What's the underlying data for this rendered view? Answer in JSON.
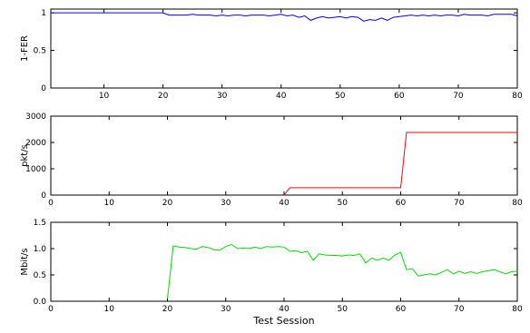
{
  "chart_data": [
    {
      "type": "line",
      "title": "",
      "xlabel": "",
      "ylabel": "1-FER",
      "xlim": [
        1,
        80
      ],
      "ylim": [
        0,
        1.05
      ],
      "xticks": [
        10,
        20,
        30,
        40,
        50,
        60,
        70,
        80
      ],
      "yticks": [
        0,
        0.5,
        1
      ],
      "ytick_labels": [
        "0",
        "0.5",
        "1"
      ],
      "grid": false,
      "series": [
        {
          "color": "#0000ff",
          "x": [
            1,
            2,
            3,
            4,
            5,
            6,
            7,
            8,
            9,
            10,
            11,
            12,
            13,
            14,
            15,
            16,
            17,
            18,
            19,
            20,
            21,
            22,
            23,
            24,
            25,
            26,
            27,
            28,
            29,
            30,
            31,
            32,
            33,
            34,
            35,
            36,
            37,
            38,
            39,
            40,
            41,
            42,
            43,
            44,
            45,
            46,
            47,
            48,
            49,
            50,
            51,
            52,
            53,
            54,
            55,
            56,
            57,
            58,
            59,
            60,
            61,
            62,
            63,
            64,
            65,
            66,
            67,
            68,
            69,
            70,
            71,
            72,
            73,
            74,
            75,
            76,
            77,
            78,
            79,
            80
          ],
          "y": [
            1,
            1,
            1,
            1,
            1,
            1,
            1,
            1,
            1,
            1,
            1,
            1,
            1,
            1,
            1,
            1,
            1,
            1,
            1,
            1,
            0.97,
            0.97,
            0.97,
            0.97,
            0.98,
            0.97,
            0.97,
            0.97,
            0.96,
            0.97,
            0.96,
            0.97,
            0.97,
            0.96,
            0.97,
            0.97,
            0.97,
            0.96,
            0.97,
            0.98,
            0.96,
            0.97,
            0.94,
            0.96,
            0.9,
            0.93,
            0.95,
            0.93,
            0.94,
            0.95,
            0.93,
            0.95,
            0.94,
            0.89,
            0.91,
            0.9,
            0.93,
            0.9,
            0.94,
            0.95,
            0.96,
            0.97,
            0.96,
            0.97,
            0.96,
            0.97,
            0.96,
            0.97,
            0.97,
            0.96,
            0.98,
            0.97,
            0.97,
            0.97,
            0.96,
            0.98,
            0.98,
            0.98,
            0.98,
            0.96
          ]
        }
      ]
    },
    {
      "type": "line",
      "title": "",
      "xlabel": "",
      "ylabel": "pkt/s",
      "xlim": [
        0,
        80
      ],
      "ylim": [
        0,
        3000
      ],
      "xticks": [
        0,
        10,
        20,
        30,
        40,
        50,
        60,
        70,
        80
      ],
      "yticks": [
        0,
        1000,
        2000,
        3000
      ],
      "ytick_labels": [
        "0",
        "1000",
        "2000",
        "3000"
      ],
      "grid": false,
      "series": [
        {
          "color": "#ff0000",
          "x": [
            40,
            41,
            42,
            50,
            55,
            60,
            61,
            65,
            70,
            75,
            80
          ],
          "y": [
            0,
            280,
            280,
            280,
            280,
            280,
            2380,
            2380,
            2380,
            2380,
            2380
          ]
        }
      ]
    },
    {
      "type": "line",
      "title": "",
      "xlabel": "Test Session",
      "ylabel": "Mbit/s",
      "xlim": [
        0,
        80
      ],
      "ylim": [
        0,
        1.5
      ],
      "xticks": [
        0,
        10,
        20,
        30,
        40,
        50,
        60,
        70,
        80
      ],
      "yticks": [
        0,
        0.5,
        1.0,
        1.5
      ],
      "ytick_labels": [
        "0.0",
        "0.5",
        "1.0",
        "1.5"
      ],
      "grid": false,
      "series": [
        {
          "color": "#00dd00",
          "x": [
            20,
            21,
            22,
            23,
            24,
            25,
            26,
            27,
            28,
            29,
            30,
            31,
            32,
            33,
            34,
            35,
            36,
            37,
            38,
            39,
            40,
            41,
            42,
            43,
            44,
            45,
            46,
            47,
            48,
            49,
            50,
            51,
            52,
            53,
            54,
            55,
            56,
            57,
            58,
            59,
            60,
            61,
            62,
            63,
            64,
            65,
            66,
            67,
            68,
            69,
            70,
            71,
            72,
            73,
            74,
            75,
            76,
            77,
            78,
            79,
            80
          ],
          "y": [
            0.05,
            1.05,
            1.03,
            1.02,
            1.0,
            0.99,
            1.04,
            1.02,
            0.98,
            0.97,
            1.04,
            1.08,
            1.0,
            1.01,
            1.0,
            1.03,
            1.0,
            1.04,
            1.03,
            1.04,
            1.03,
            0.95,
            0.96,
            0.92,
            0.95,
            0.78,
            0.9,
            0.88,
            0.87,
            0.87,
            0.86,
            0.88,
            0.87,
            0.9,
            0.73,
            0.82,
            0.78,
            0.82,
            0.78,
            0.88,
            0.93,
            0.6,
            0.62,
            0.48,
            0.5,
            0.52,
            0.5,
            0.55,
            0.6,
            0.52,
            0.57,
            0.53,
            0.56,
            0.53,
            0.56,
            0.58,
            0.6,
            0.56,
            0.52,
            0.56,
            0.57
          ]
        }
      ]
    }
  ]
}
